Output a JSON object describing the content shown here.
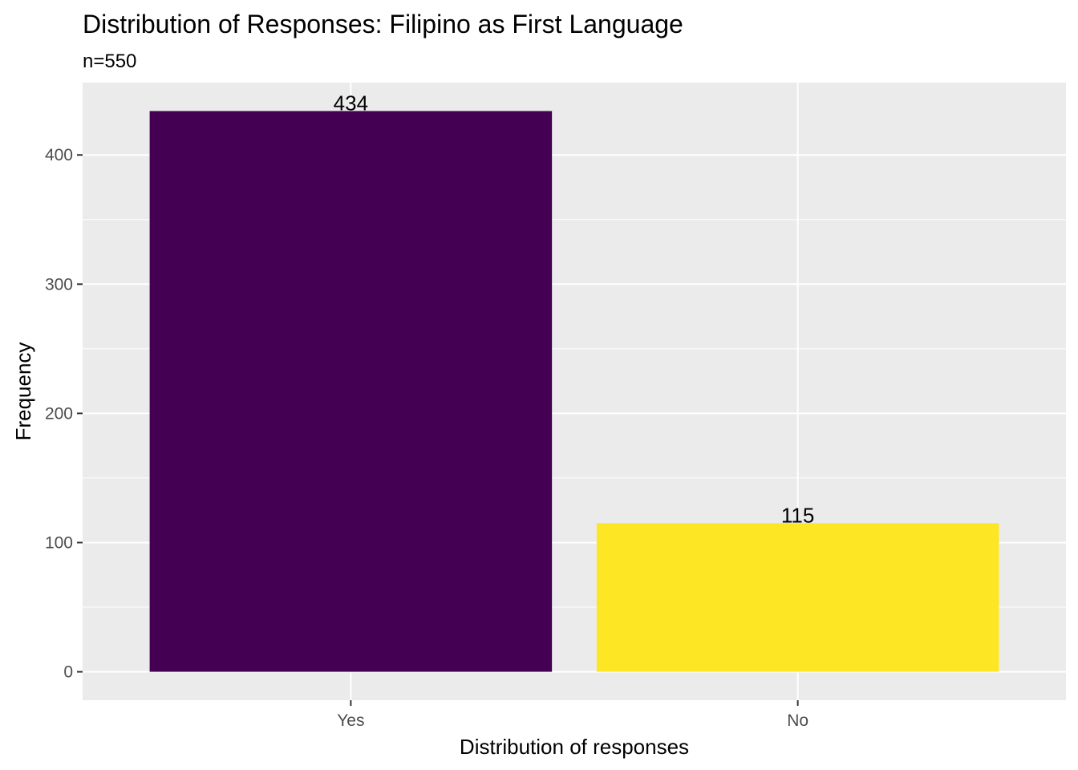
{
  "chart_data": {
    "type": "bar",
    "title": "Distribution of Responses: Filipino as First Language",
    "subtitle": "n=550",
    "xlabel": "Distribution of responses",
    "ylabel": "Frequency",
    "categories": [
      "Yes",
      "No"
    ],
    "values": [
      434,
      115
    ],
    "value_labels": [
      "434",
      "115"
    ],
    "colors": [
      "#440154",
      "#FDE725"
    ],
    "ylim": [
      -22,
      456
    ],
    "yticks": [
      0,
      100,
      200,
      300,
      400
    ],
    "ytick_labels": [
      "0",
      "100",
      "200",
      "300",
      "400"
    ],
    "grid": true,
    "legend": "none",
    "panel_background": "#EBEBEB",
    "grid_color": "#FFFFFF"
  }
}
